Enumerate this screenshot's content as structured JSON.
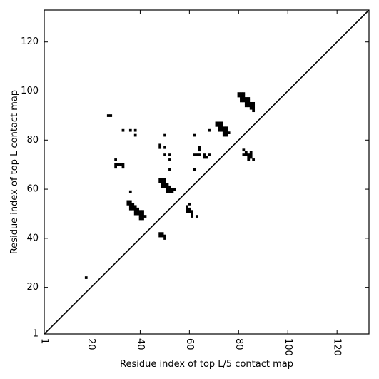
{
  "chart_data": {
    "type": "scatter",
    "xlabel": "Residue index of top L/5 contact map",
    "ylabel": "Residue index of top L contact map",
    "xlim": [
      1,
      133
    ],
    "ylim": [
      1,
      133
    ],
    "xticks": [
      {
        "value": 1,
        "label": "1"
      },
      {
        "value": 20,
        "label": "20"
      },
      {
        "value": 40,
        "label": "40"
      },
      {
        "value": 60,
        "label": "60"
      },
      {
        "value": 80,
        "label": "80"
      },
      {
        "value": 100,
        "label": "100"
      },
      {
        "value": 120,
        "label": "120"
      }
    ],
    "yticks": [
      {
        "value": 1,
        "label": "1"
      },
      {
        "value": 20,
        "label": "20"
      },
      {
        "value": 40,
        "label": "40"
      },
      {
        "value": 60,
        "label": "60"
      },
      {
        "value": 80,
        "label": "80"
      },
      {
        "value": 100,
        "label": "100"
      },
      {
        "value": 120,
        "label": "120"
      }
    ],
    "x_tick_rotation": -90,
    "diagonal": true,
    "colors": {
      "marker": "#000000",
      "background": "#ffffff"
    },
    "series": [
      {
        "points": [
          [
            18,
            24
          ],
          [
            27,
            90
          ],
          [
            28,
            90
          ],
          [
            30,
            72
          ],
          [
            30,
            70
          ],
          [
            30,
            69
          ],
          [
            31,
            70
          ],
          [
            32,
            70
          ],
          [
            33,
            70
          ],
          [
            33,
            69
          ],
          [
            33,
            84
          ],
          [
            36,
            84
          ],
          [
            38,
            84
          ],
          [
            38,
            82
          ],
          [
            36,
            59
          ],
          [
            35,
            55
          ],
          [
            36,
            55
          ],
          [
            35,
            54
          ],
          [
            36,
            54
          ],
          [
            37,
            54
          ],
          [
            36,
            53
          ],
          [
            37,
            53
          ],
          [
            38,
            53
          ],
          [
            36,
            52
          ],
          [
            37,
            52
          ],
          [
            38,
            52
          ],
          [
            39,
            52
          ],
          [
            38,
            51
          ],
          [
            39,
            51
          ],
          [
            40,
            51
          ],
          [
            41,
            51
          ],
          [
            38,
            50
          ],
          [
            39,
            50
          ],
          [
            40,
            50
          ],
          [
            41,
            50
          ],
          [
            40,
            49
          ],
          [
            41,
            49
          ],
          [
            42,
            49
          ],
          [
            40,
            48
          ],
          [
            41,
            48
          ],
          [
            48,
            78
          ],
          [
            48,
            77
          ],
          [
            50,
            82
          ],
          [
            50,
            77
          ],
          [
            50,
            74
          ],
          [
            52,
            74
          ],
          [
            52,
            72
          ],
          [
            52,
            68
          ],
          [
            48,
            64
          ],
          [
            49,
            64
          ],
          [
            50,
            64
          ],
          [
            48,
            63
          ],
          [
            49,
            63
          ],
          [
            50,
            63
          ],
          [
            49,
            62
          ],
          [
            50,
            62
          ],
          [
            51,
            62
          ],
          [
            49,
            61
          ],
          [
            50,
            61
          ],
          [
            51,
            61
          ],
          [
            52,
            61
          ],
          [
            51,
            60
          ],
          [
            52,
            60
          ],
          [
            53,
            60
          ],
          [
            54,
            60
          ],
          [
            51,
            59
          ],
          [
            52,
            59
          ],
          [
            53,
            59
          ],
          [
            48,
            42
          ],
          [
            49,
            42
          ],
          [
            48,
            41
          ],
          [
            49,
            41
          ],
          [
            50,
            41
          ],
          [
            50,
            40
          ],
          [
            59,
            53
          ],
          [
            59,
            52
          ],
          [
            60,
            52
          ],
          [
            59,
            51
          ],
          [
            60,
            51
          ],
          [
            60,
            54
          ],
          [
            61,
            51
          ],
          [
            61,
            50
          ],
          [
            61,
            49
          ],
          [
            63,
            49
          ],
          [
            62,
            82
          ],
          [
            62,
            74
          ],
          [
            63,
            74
          ],
          [
            64,
            74
          ],
          [
            62,
            68
          ],
          [
            64,
            77
          ],
          [
            64,
            76
          ],
          [
            66,
            74
          ],
          [
            66,
            73
          ],
          [
            67,
            73
          ],
          [
            68,
            74
          ],
          [
            68,
            84
          ],
          [
            71,
            87
          ],
          [
            72,
            87
          ],
          [
            73,
            87
          ],
          [
            71,
            86
          ],
          [
            72,
            86
          ],
          [
            73,
            86
          ],
          [
            72,
            85
          ],
          [
            73,
            85
          ],
          [
            74,
            85
          ],
          [
            75,
            85
          ],
          [
            72,
            84
          ],
          [
            73,
            84
          ],
          [
            74,
            84
          ],
          [
            75,
            84
          ],
          [
            74,
            83
          ],
          [
            75,
            83
          ],
          [
            76,
            83
          ],
          [
            74,
            82
          ],
          [
            75,
            82
          ],
          [
            80,
            99
          ],
          [
            81,
            99
          ],
          [
            82,
            99
          ],
          [
            80,
            98
          ],
          [
            81,
            98
          ],
          [
            82,
            98
          ],
          [
            81,
            97
          ],
          [
            82,
            97
          ],
          [
            83,
            97
          ],
          [
            84,
            97
          ],
          [
            81,
            96
          ],
          [
            82,
            96
          ],
          [
            83,
            96
          ],
          [
            84,
            96
          ],
          [
            83,
            95
          ],
          [
            84,
            95
          ],
          [
            85,
            95
          ],
          [
            86,
            95
          ],
          [
            83,
            94
          ],
          [
            84,
            94
          ],
          [
            85,
            94
          ],
          [
            86,
            94
          ],
          [
            85,
            93
          ],
          [
            86,
            93
          ],
          [
            86,
            92
          ],
          [
            82,
            76
          ],
          [
            83,
            75
          ],
          [
            85,
            75
          ],
          [
            82,
            74
          ],
          [
            83,
            74
          ],
          [
            84,
            74
          ],
          [
            85,
            74
          ],
          [
            84,
            73
          ],
          [
            85,
            73
          ],
          [
            84,
            72
          ],
          [
            86,
            72
          ]
        ]
      }
    ]
  }
}
